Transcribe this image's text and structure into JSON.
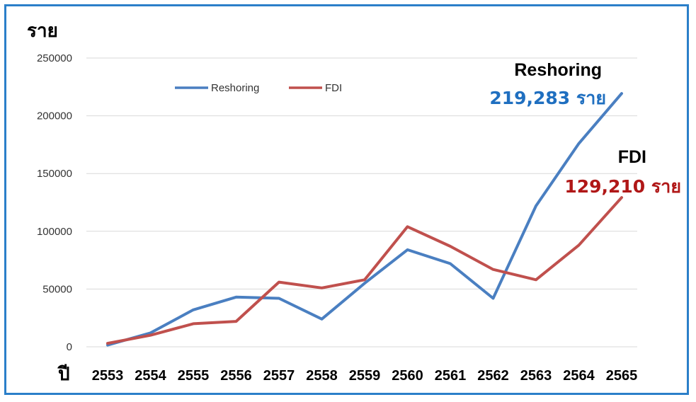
{
  "chart_data": {
    "type": "line",
    "ylabel": "ราย",
    "xlabel": "ปี",
    "ylim": [
      0,
      250000
    ],
    "yticks": [
      "0",
      "50000",
      "100000",
      "150000",
      "200000",
      "250000"
    ],
    "x": [
      "2553",
      "2554",
      "2555",
      "2556",
      "2557",
      "2558",
      "2559",
      "2560",
      "2561",
      "2562",
      "2563",
      "2564",
      "2565"
    ],
    "legend_position": "top-left",
    "series": [
      {
        "name": "Reshoring",
        "color": "#4a7fc1",
        "values": [
          1500,
          12000,
          32000,
          43000,
          42000,
          24000,
          55000,
          84000,
          72000,
          42000,
          122000,
          176000,
          219283
        ]
      },
      {
        "name": "FDI",
        "color": "#c0504d",
        "values": [
          3000,
          10000,
          20000,
          22000,
          56000,
          51000,
          58000,
          104000,
          87000,
          67000,
          58000,
          88000,
          129210
        ]
      }
    ],
    "annotations": [
      {
        "series": "Reshoring",
        "name": "Reshoring",
        "value_text": "219,283 ราย",
        "color": "#1f6fc0"
      },
      {
        "series": "FDI",
        "name": "FDI",
        "value_text": "129,210 ราย",
        "color": "#b01717"
      }
    ]
  }
}
